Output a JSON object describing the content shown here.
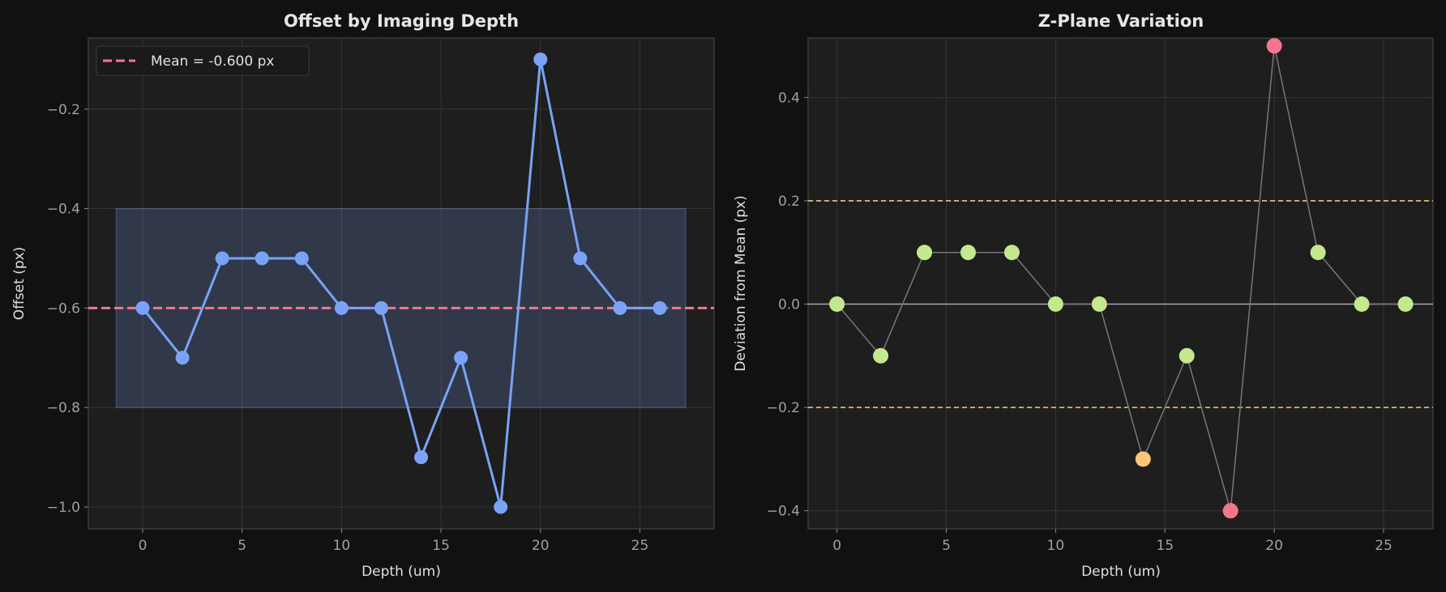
{
  "colors": {
    "background": "#111111",
    "axes_bg": "#1e1e1e",
    "grid": "#3a3a3a",
    "line_blue": "#7aa2f7",
    "band": "#7aa2f7",
    "mean_red": "#f7768e",
    "ok_green": "#c3e88d",
    "warn_orange": "#ffc777",
    "bad_red": "#f7768e",
    "threshold": "#e0af68",
    "connector": "#777777",
    "zero_line": "#aaaaaa"
  },
  "chart_data": [
    {
      "type": "line",
      "title": "Offset by Imaging Depth",
      "xlabel": "Depth (um)",
      "ylabel": "Offset (px)",
      "x": [
        0,
        2,
        4,
        6,
        8,
        10,
        12,
        14,
        16,
        18,
        20,
        22,
        24,
        26
      ],
      "values": [
        -0.6,
        -0.7,
        -0.5,
        -0.5,
        -0.5,
        -0.6,
        -0.6,
        -0.9,
        -0.7,
        -1.0,
        -0.1,
        -0.5,
        -0.6,
        -0.6
      ],
      "xlim": [
        -2.73,
        28.73
      ],
      "ylim": [
        -1.044,
        -0.057
      ],
      "xticks": [
        0,
        5,
        10,
        15,
        20,
        25
      ],
      "xtick_labels": [
        "0",
        "5",
        "10",
        "15",
        "20",
        "25"
      ],
      "yticks": [
        -0.2,
        -0.4,
        -0.6,
        -0.8,
        -1.0
      ],
      "ytick_labels": [
        "−0.2",
        "−0.4",
        "−0.6",
        "−0.8",
        "−1.0"
      ],
      "mean": -0.6,
      "band": {
        "y_low": -0.8,
        "y_high": -0.4,
        "x_low": -1.33,
        "x_high": 27.3
      },
      "legend": {
        "entries": [
          "Mean = -0.600 px"
        ],
        "placement": "top-left"
      },
      "grid": true
    },
    {
      "type": "scatter",
      "title": "Z-Plane Variation",
      "xlabel": "Depth (um)",
      "ylabel": "Deviation from Mean (px)",
      "x": [
        0,
        2,
        4,
        6,
        8,
        10,
        12,
        14,
        16,
        18,
        20,
        22,
        24,
        26
      ],
      "values": [
        0,
        -0.1,
        0.1,
        0.1,
        0.1,
        0,
        0,
        -0.3,
        -0.1,
        -0.4,
        0.5,
        0.1,
        0,
        0
      ],
      "xlim": [
        -1.32,
        27.26
      ],
      "ylim": [
        -0.435,
        0.515
      ],
      "xticks": [
        0,
        5,
        10,
        15,
        20,
        25
      ],
      "xtick_labels": [
        "0",
        "5",
        "10",
        "15",
        "20",
        "25"
      ],
      "yticks": [
        0.4,
        0.2,
        0.0,
        -0.2,
        -0.4
      ],
      "ytick_labels": [
        "0.4",
        "0.2",
        "0.0",
        "−0.2",
        "−0.4"
      ],
      "thresholds": [
        0.2,
        -0.2
      ],
      "grid": true
    }
  ]
}
